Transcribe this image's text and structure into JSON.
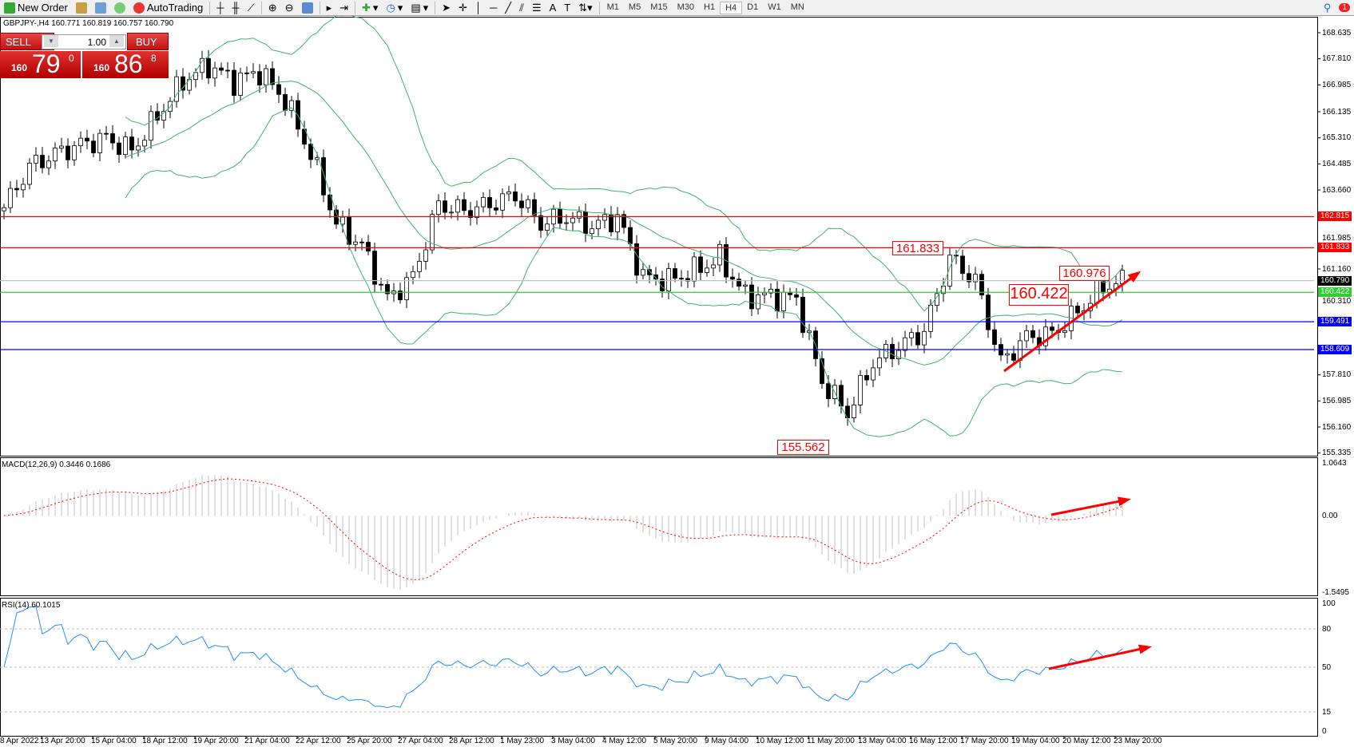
{
  "toolbar": {
    "new_order": "New Order",
    "auto_trading": "AutoTrading",
    "timeframes": [
      "M1",
      "M5",
      "M15",
      "M30",
      "H1",
      "H4",
      "D1",
      "W1",
      "MN"
    ],
    "active_timeframe": "H4",
    "notification_count": "1"
  },
  "symbol_line": "GBPJPY-,H4  160.771 160.819 160.757 160.790",
  "one_click": {
    "sell_label": "SELL",
    "buy_label": "BUY",
    "lot": "1.00",
    "sell_small": "160",
    "sell_big": "79",
    "sell_sup": "0",
    "buy_small": "160",
    "buy_big": "86",
    "buy_sup": "8"
  },
  "price_axis": [
    "168.635",
    "167.810",
    "166.985",
    "166.135",
    "165.310",
    "164.485",
    "163.660",
    "161.985",
    "161.160",
    "160.310",
    "157.810",
    "156.985",
    "156.160",
    "155.335"
  ],
  "levels": [
    {
      "price": 162.815,
      "label": "162.815",
      "color": "#ff0000"
    },
    {
      "price": 161.833,
      "label": "161.833",
      "color": "#ff0000"
    },
    {
      "price": 160.79,
      "label": "160.790",
      "color": "#c0c0c0",
      "tag": "#000000"
    },
    {
      "price": 160.422,
      "label": "160.422",
      "color": "#32cd32"
    },
    {
      "price": 159.491,
      "label": "159.491",
      "color": "#0000ff"
    },
    {
      "price": 158.609,
      "label": "158.609",
      "color": "#0000ff"
    }
  ],
  "annotations": [
    "161.833",
    "155.562",
    "160.422",
    "160.976"
  ],
  "macd": {
    "label": "MACD(12,26,9) 0.3446 0.1686",
    "axis": [
      "1.0643",
      "0.00",
      "-1.5495"
    ]
  },
  "rsi": {
    "label": "RSI(14) 60.1015",
    "axis": [
      "100",
      "80",
      "50",
      "15",
      "0"
    ]
  },
  "time_axis": [
    "8 Apr 2022",
    "13 Apr 20:00",
    "15 Apr 04:00",
    "18 Apr 12:00",
    "19 Apr 20:00",
    "21 Apr 04:00",
    "22 Apr 12:00",
    "25 Apr 20:00",
    "27 Apr 04:00",
    "28 Apr 12:00",
    "1 May 23:00",
    "3 May 04:00",
    "4 May 12:00",
    "5 May 20:00",
    "9 May 04:00",
    "10 May 12:00",
    "11 May 20:00",
    "13 May 04:00",
    "16 May 12:00",
    "17 May 20:00",
    "19 May 04:00",
    "20 May 12:00",
    "23 May 20:00"
  ],
  "chart_data": {
    "type": "candlestick",
    "symbol": "GBPJPY",
    "timeframe": "H4",
    "ylim": [
      155.335,
      168.635
    ],
    "close_every_16h": [
      163.1,
      164.4,
      164.8,
      165.1,
      165.3,
      164.9,
      166.0,
      167.1,
      167.6,
      167.1,
      167.4,
      166.5,
      164.8,
      162.6,
      161.9,
      160.2,
      160.9,
      163.2,
      163.0,
      163.2,
      163.5,
      162.6,
      162.8,
      162.5,
      162.8,
      160.9,
      160.8,
      161.1,
      161.5,
      160.3,
      160.3,
      160.2,
      157.6,
      156.6,
      158.2,
      158.7,
      159.2,
      161.5,
      160.8,
      158.2,
      159.0,
      159.1,
      159.8,
      160.6,
      160.8
    ],
    "indicators": [
      "Bollinger Bands",
      "MACD(12,26,9)",
      "RSI(14)"
    ],
    "colors": {
      "bands": "#3cb371",
      "macd_signal": "#ff0000",
      "macd_hist": "#c0c0c0",
      "rsi": "#1e90ff",
      "trend_arrows": "#ff0000"
    }
  }
}
